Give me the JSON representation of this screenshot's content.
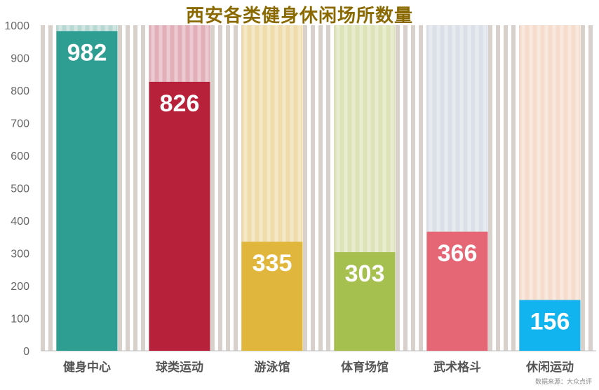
{
  "chart_data": {
    "type": "bar",
    "title": "西安各类健身休闲场所数量",
    "categories": [
      "健身中心",
      "球类运动",
      "游泳馆",
      "体育场馆",
      "武术格斗",
      "休闲运动"
    ],
    "values": [
      982,
      826,
      335,
      303,
      366,
      156
    ],
    "ylim": [
      0,
      1000
    ],
    "yticks": [
      0,
      100,
      200,
      300,
      400,
      500,
      600,
      700,
      800,
      900,
      1000
    ],
    "colors": [
      "#2e9e93",
      "#b8213a",
      "#e0b73c",
      "#a6c050",
      "#e56675",
      "#11b4ee"
    ],
    "bg_colors": [
      "#b8d8d4",
      "#e2aeb8",
      "#efdcaa",
      "#dde3b7",
      "#dbe0e8",
      "#f6dccd"
    ],
    "grid": false,
    "source": "数据来源：大众点评"
  }
}
